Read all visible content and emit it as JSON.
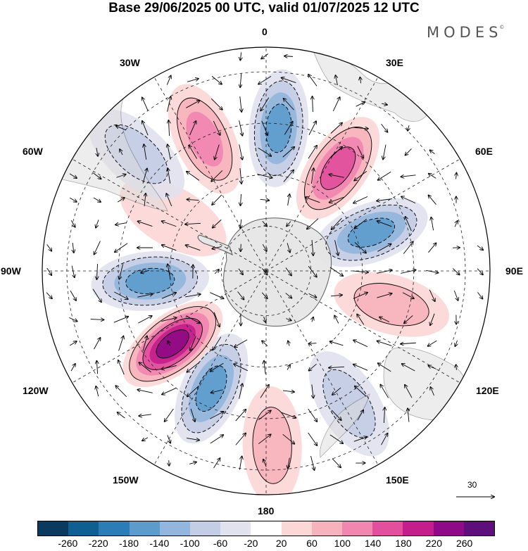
{
  "title": "Base 29/06/2025 00 UTC, valid 01/07/2025 12 UTC",
  "logo": {
    "text": "MODES",
    "mark": "©"
  },
  "longitude_labels": {
    "deg0": "0",
    "e30": "30E",
    "e60": "60E",
    "e90": "90E",
    "e120": "120E",
    "e150": "150E",
    "deg180": "180",
    "w150": "150W",
    "w120": "120W",
    "w90": "90W",
    "w60": "60W",
    "w30": "30W"
  },
  "wind_scale": {
    "label": "30"
  },
  "colorbar": {
    "colors": [
      "#0b3a5e",
      "#0f5f93",
      "#2b7db7",
      "#5d9bcc",
      "#92b6dc",
      "#c3cde5",
      "#e2e2ef",
      "#ffffff",
      "#fbd7d6",
      "#f7b3bd",
      "#f186b1",
      "#e24f9c",
      "#c41e8d",
      "#8f0a86",
      "#5e0f7c"
    ],
    "ticks": [
      "-260",
      "-220",
      "-180",
      "-140",
      "-100",
      "-60",
      "-20",
      "20",
      "60",
      "100",
      "140",
      "180",
      "220",
      "260"
    ]
  },
  "anomalies": [
    {
      "lon": 5,
      "r": 0.64,
      "value": -140
    },
    {
      "lon": 35,
      "r": 0.56,
      "value": 140
    },
    {
      "lon": 70,
      "r": 0.5,
      "value": -150
    },
    {
      "lon": 105,
      "r": 0.58,
      "value": 70
    },
    {
      "lon": 148,
      "r": 0.7,
      "value": -90
    },
    {
      "lon": 178,
      "r": 0.78,
      "value": 70
    },
    {
      "lon": -155,
      "r": 0.58,
      "value": -140
    },
    {
      "lon": -128,
      "r": 0.53,
      "value": 230
    },
    {
      "lon": -95,
      "r": 0.52,
      "value": -140
    },
    {
      "lon": -60,
      "r": 0.48,
      "value": 50
    },
    {
      "lon": -25,
      "r": 0.65,
      "value": 130
    },
    {
      "lon": -48,
      "r": 0.78,
      "value": -60
    }
  ]
}
